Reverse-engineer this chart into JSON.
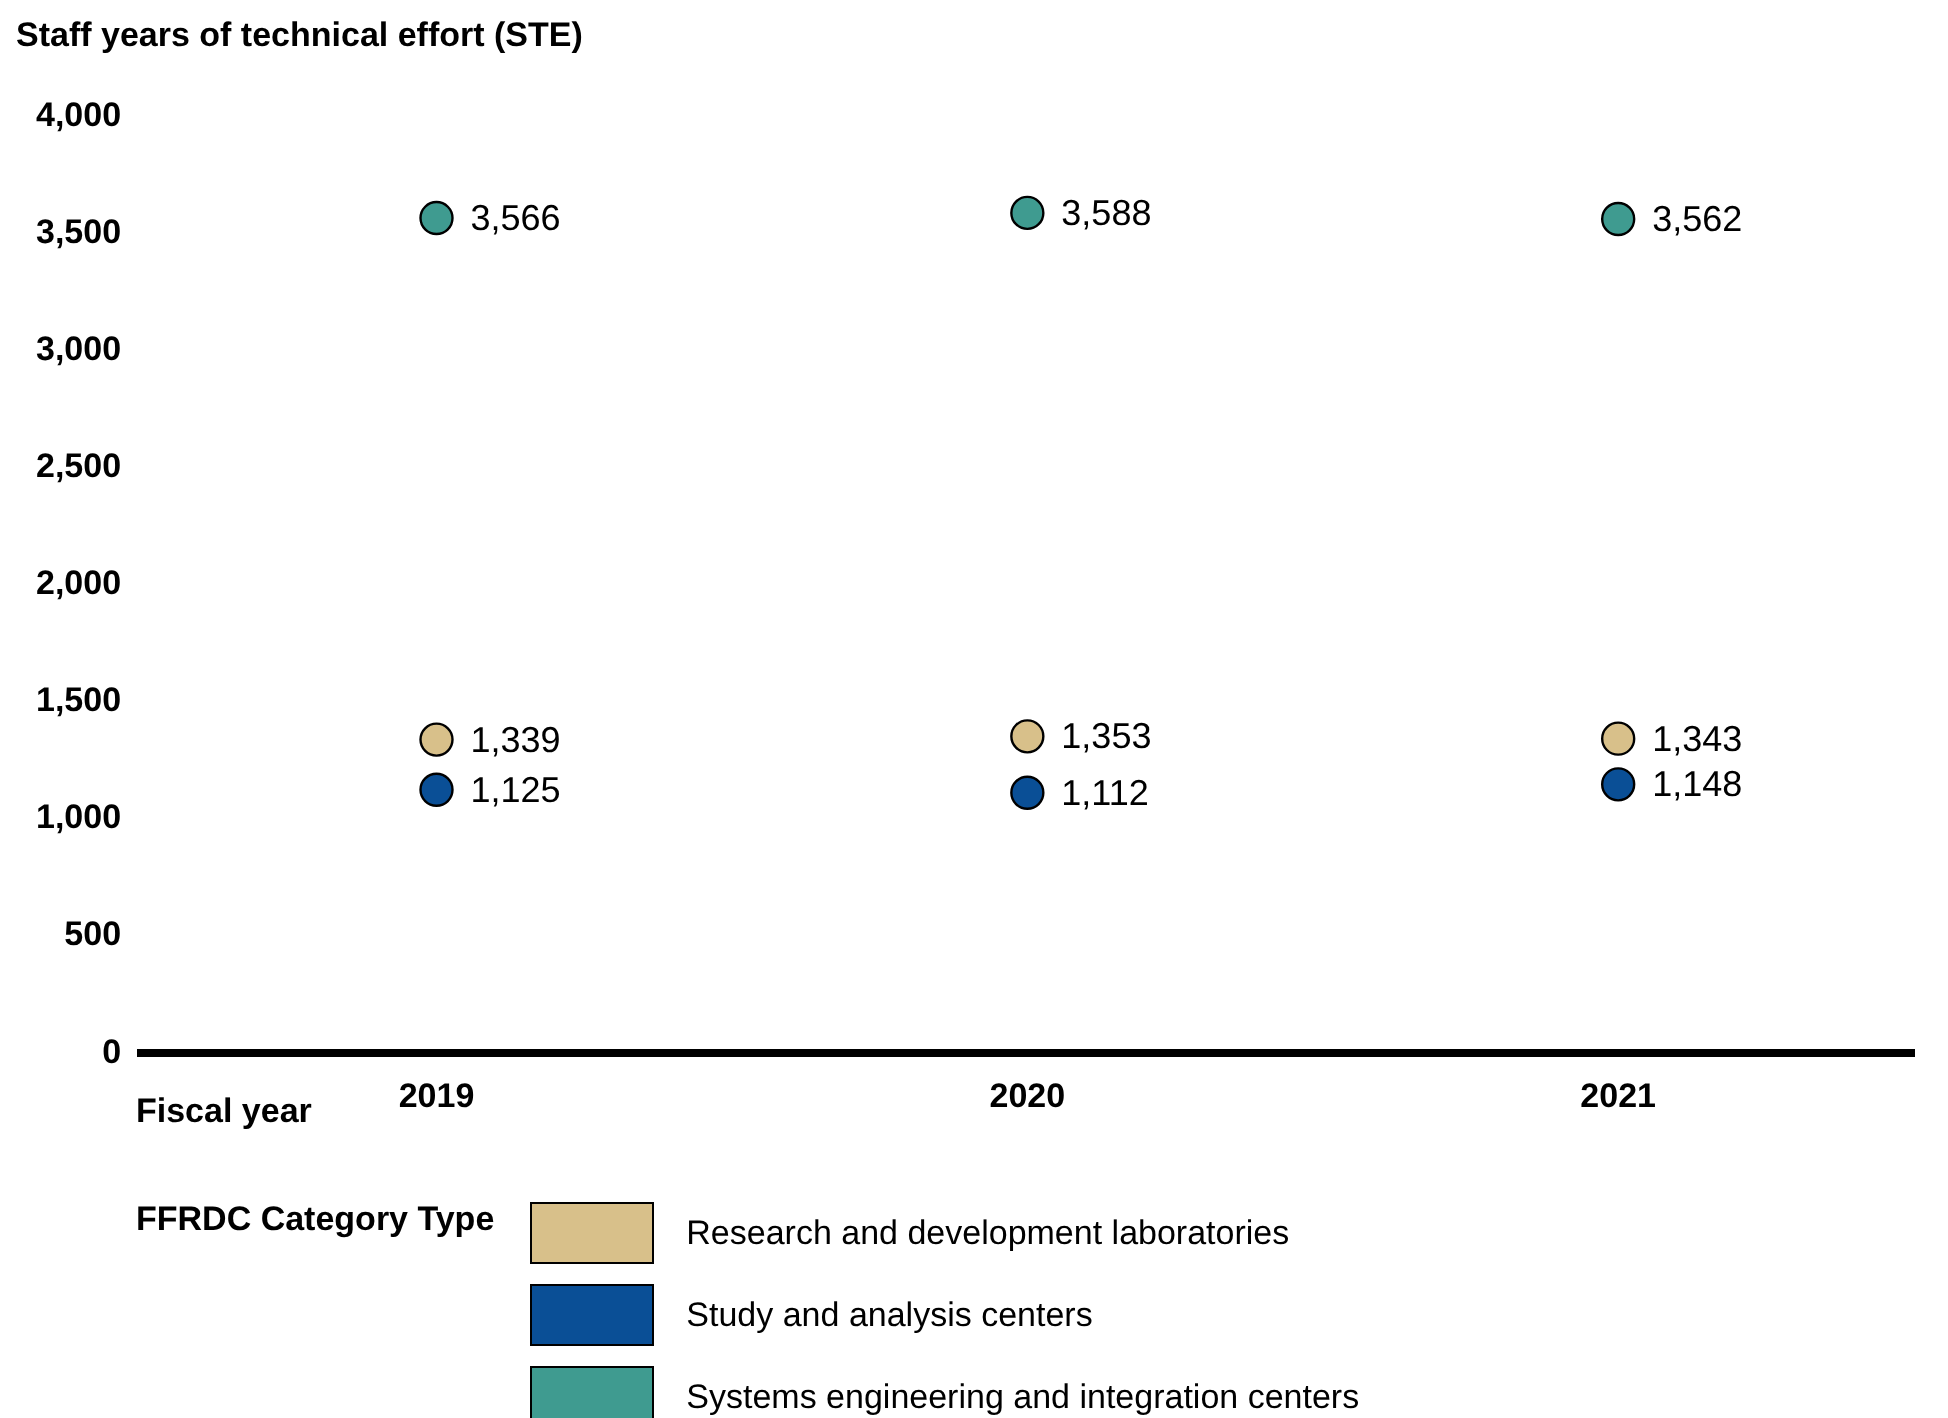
{
  "chart_data": {
    "type": "scatter",
    "ylabel": "Staff years of technical effort (STE)",
    "xlabel": "Fiscal year",
    "legend_title": "FFRDC Category Type",
    "categories": [
      "2019",
      "2020",
      "2021"
    ],
    "series": [
      {
        "name": "Research and development laboratories",
        "color": "#d8c08a",
        "values": [
          1339,
          1353,
          1343
        ],
        "value_labels": [
          "1,339",
          "1,353",
          "1,343"
        ]
      },
      {
        "name": "Study and analysis centers",
        "color": "#0a4f96",
        "values": [
          1125,
          1112,
          1148
        ],
        "value_labels": [
          "1,125",
          "1,112",
          "1,148"
        ]
      },
      {
        "name": "Systems engineering and integration centers",
        "color": "#3f9b90",
        "values": [
          3566,
          3588,
          3562
        ],
        "value_labels": [
          "3,566",
          "3,588",
          "3,562"
        ]
      }
    ],
    "ylim": [
      0,
      4000
    ],
    "yticks": [
      {
        "value": 0,
        "label": "0"
      },
      {
        "value": 500,
        "label": "500"
      },
      {
        "value": 1000,
        "label": "1,000"
      },
      {
        "value": 1500,
        "label": "1,500"
      },
      {
        "value": 2000,
        "label": "2,000"
      },
      {
        "value": 2500,
        "label": "2,500"
      },
      {
        "value": 3000,
        "label": "3,000"
      },
      {
        "value": 3500,
        "label": "3,500"
      },
      {
        "value": 4000,
        "label": "4,000"
      }
    ],
    "grid": false,
    "legend": "bottom",
    "marker": "circle"
  }
}
